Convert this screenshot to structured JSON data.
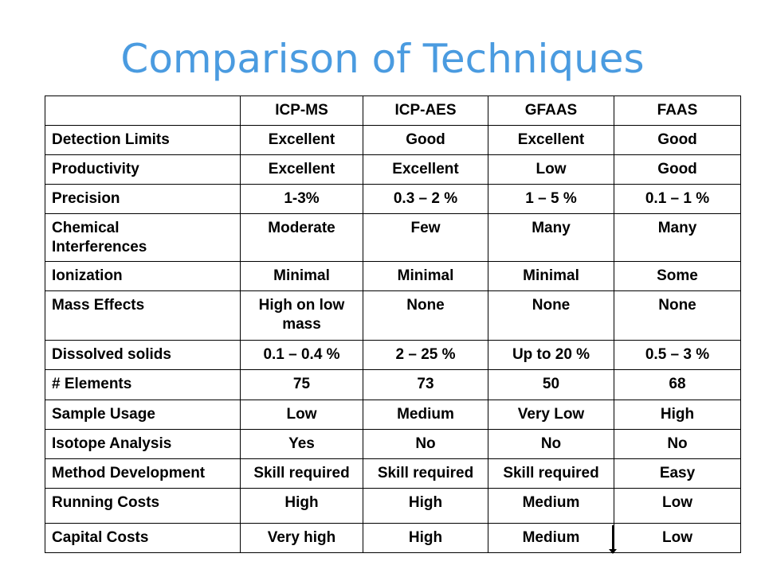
{
  "title": "Comparison of Techniques",
  "table": {
    "headers": [
      "",
      "ICP-MS",
      "ICP-AES",
      "GFAAS",
      "FAAS"
    ],
    "rows": [
      {
        "label": "Detection Limits",
        "values": [
          "Excellent",
          "Good",
          "Excellent",
          "Good"
        ]
      },
      {
        "label": "Productivity",
        "values": [
          "Excellent",
          "Excellent",
          "Low",
          "Good"
        ]
      },
      {
        "label": "Precision",
        "values": [
          "1-3%",
          "0.3 – 2 %",
          "1 – 5 %",
          "0.1 – 1 %"
        ]
      },
      {
        "label": "Chemical Interferences",
        "values": [
          "Moderate",
          "Few",
          "Many",
          "Many"
        ]
      },
      {
        "label": "Ionization",
        "values": [
          "Minimal",
          "Minimal",
          "Minimal",
          "Some"
        ]
      },
      {
        "label": "Mass Effects",
        "values": [
          "High on low mass",
          "None",
          "None",
          "None"
        ]
      },
      {
        "label": "Dissolved solids",
        "values": [
          "0.1 – 0.4 %",
          "2 – 25 %",
          "Up to 20 %",
          "0.5 – 3 %"
        ]
      },
      {
        "label": "# Elements",
        "values": [
          "75",
          "73",
          "50",
          "68"
        ]
      },
      {
        "label": "Sample Usage",
        "values": [
          "Low",
          "Medium",
          "Very Low",
          "High"
        ]
      },
      {
        "label": "Isotope Analysis",
        "values": [
          "Yes",
          "No",
          "No",
          "No"
        ]
      },
      {
        "label": "Method Development",
        "values": [
          "Skill required",
          "Skill required",
          "Skill required",
          "Easy"
        ]
      },
      {
        "label": "Running Costs",
        "values": [
          "High",
          "High",
          "Medium",
          "Low"
        ]
      },
      {
        "label": "Capital Costs",
        "values": [
          "Very high",
          "High",
          "Medium",
          "Low"
        ]
      }
    ]
  },
  "colors": {
    "title": "#4a9be0",
    "text": "#000000",
    "border": "#000000"
  }
}
